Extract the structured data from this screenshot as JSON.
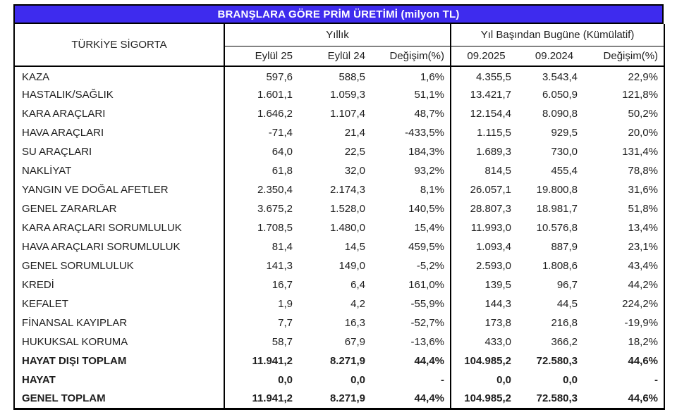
{
  "title": "BRANŞLARA GÖRE PRİM ÜRETİMİ (milyon TL)",
  "company": "TÜRKİYE SİGORTA",
  "groups": {
    "yearly": "Yıllık",
    "ytd": "Yıl Başından Bugüne (Kümülatif)"
  },
  "columns": {
    "col1": "Eylül 25",
    "col2": "Eylül 24",
    "col3": "Değişim(%)",
    "col4": "09.2025",
    "col5": "09.2024",
    "col6": "Değişim(%)"
  },
  "rows": [
    {
      "label": "KAZA",
      "values": [
        "597,6",
        "588,5",
        "1,6%",
        "4.355,5",
        "3.543,4",
        "22,9%"
      ],
      "bold": false
    },
    {
      "label": "HASTALIK/SAĞLIK",
      "values": [
        "1.601,1",
        "1.059,3",
        "51,1%",
        "13.421,7",
        "6.050,9",
        "121,8%"
      ],
      "bold": false
    },
    {
      "label": "KARA ARAÇLARI",
      "values": [
        "1.646,2",
        "1.107,4",
        "48,7%",
        "12.154,4",
        "8.090,8",
        "50,2%"
      ],
      "bold": false
    },
    {
      "label": "HAVA ARAÇLARI",
      "values": [
        "-71,4",
        "21,4",
        "-433,5%",
        "1.115,5",
        "929,5",
        "20,0%"
      ],
      "bold": false
    },
    {
      "label": "SU ARAÇLARI",
      "values": [
        "64,0",
        "22,5",
        "184,3%",
        "1.689,3",
        "730,0",
        "131,4%"
      ],
      "bold": false
    },
    {
      "label": "NAKLİYAT",
      "values": [
        "61,8",
        "32,0",
        "93,2%",
        "814,5",
        "455,4",
        "78,8%"
      ],
      "bold": false
    },
    {
      "label": "YANGIN VE DOĞAL AFETLER",
      "values": [
        "2.350,4",
        "2.174,3",
        "8,1%",
        "26.057,1",
        "19.800,8",
        "31,6%"
      ],
      "bold": false
    },
    {
      "label": "GENEL ZARARLAR",
      "values": [
        "3.675,2",
        "1.528,0",
        "140,5%",
        "28.807,3",
        "18.981,7",
        "51,8%"
      ],
      "bold": false
    },
    {
      "label": "KARA ARAÇLARI SORUMLULUK",
      "values": [
        "1.708,5",
        "1.480,0",
        "15,4%",
        "11.993,0",
        "10.576,8",
        "13,4%"
      ],
      "bold": false
    },
    {
      "label": "HAVA ARAÇLARI SORUMLULUK",
      "values": [
        "81,4",
        "14,5",
        "459,5%",
        "1.093,4",
        "887,9",
        "23,1%"
      ],
      "bold": false
    },
    {
      "label": "GENEL SORUMLULUK",
      "values": [
        "141,3",
        "149,0",
        "-5,2%",
        "2.593,0",
        "1.808,6",
        "43,4%"
      ],
      "bold": false
    },
    {
      "label": "KREDİ",
      "values": [
        "16,7",
        "6,4",
        "161,0%",
        "139,5",
        "96,7",
        "44,2%"
      ],
      "bold": false
    },
    {
      "label": "KEFALET",
      "values": [
        "1,9",
        "4,2",
        "-55,9%",
        "144,3",
        "44,5",
        "224,2%"
      ],
      "bold": false
    },
    {
      "label": "FİNANSAL KAYIPLAR",
      "values": [
        "7,7",
        "16,3",
        "-52,7%",
        "173,8",
        "216,8",
        "-19,9%"
      ],
      "bold": false
    },
    {
      "label": "HUKUKSAL KORUMA",
      "values": [
        "58,7",
        "67,9",
        "-13,6%",
        "433,0",
        "366,2",
        "18,2%"
      ],
      "bold": false
    },
    {
      "label": "HAYAT DIŞI TOPLAM",
      "values": [
        "11.941,2",
        "8.271,9",
        "44,4%",
        "104.985,2",
        "72.580,3",
        "44,6%"
      ],
      "bold": true
    },
    {
      "label": "HAYAT",
      "values": [
        "0,0",
        "0,0",
        "-",
        "0,0",
        "0,0",
        "-"
      ],
      "bold": true
    },
    {
      "label": "GENEL TOPLAM",
      "values": [
        "11.941,2",
        "8.271,9",
        "44,4%",
        "104.985,2",
        "72.580,3",
        "44,6%"
      ],
      "bold": true
    }
  ],
  "colors": {
    "title_bg": "#3E2BEE",
    "title_text": "#FFFFFF",
    "border": "#000000",
    "text": "#1F1F1F"
  }
}
